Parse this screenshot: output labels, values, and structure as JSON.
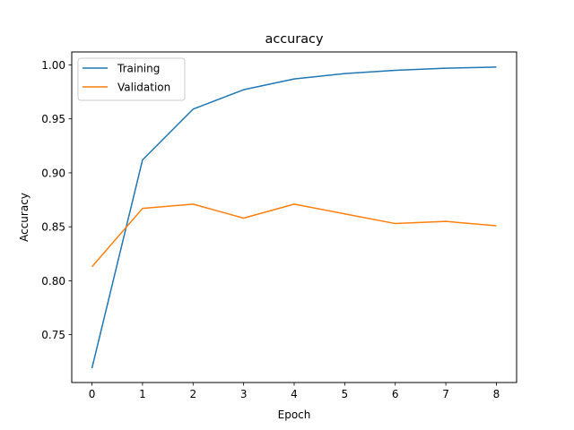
{
  "chart_data": {
    "type": "line",
    "title": "accuracy",
    "xlabel": "Epoch",
    "ylabel": "Accuracy",
    "x": [
      0,
      1,
      2,
      3,
      4,
      5,
      6,
      7,
      8
    ],
    "xticks": [
      "0",
      "1",
      "2",
      "3",
      "4",
      "5",
      "6",
      "7",
      "8"
    ],
    "yticks": [
      0.75,
      0.8,
      0.85,
      0.9,
      0.95,
      1.0
    ],
    "ytick_labels": [
      "0.75",
      "0.80",
      "0.85",
      "0.90",
      "0.95",
      "1.00"
    ],
    "xlim": [
      -0.4,
      8.4
    ],
    "ylim": [
      0.7057,
      1.012
    ],
    "grid": false,
    "legend_position": "upper left",
    "series": [
      {
        "name": "Training",
        "color": "#1f77b4",
        "values": [
          0.719,
          0.912,
          0.959,
          0.977,
          0.987,
          0.992,
          0.995,
          0.997,
          0.998
        ]
      },
      {
        "name": "Validation",
        "color": "#ff7f0e",
        "values": [
          0.813,
          0.867,
          0.871,
          0.858,
          0.871,
          0.862,
          0.853,
          0.855,
          0.851
        ]
      }
    ]
  }
}
